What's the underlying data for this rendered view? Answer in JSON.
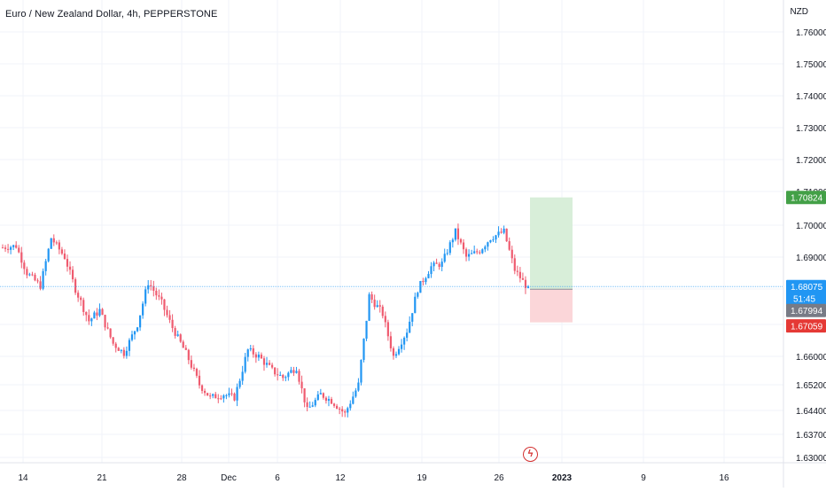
{
  "header": {
    "title": "Euro / New Zealand Dollar, 4h, PEPPERSTONE",
    "currency": "NZD"
  },
  "price_scale": {
    "ticks": [
      "1.76000",
      "1.75000",
      "1.74000",
      "1.73000",
      "1.72000",
      "1.71000",
      "1.70000",
      "1.69000",
      "1.68000",
      "1.67000",
      "1.66000",
      "1.65200",
      "1.64400",
      "1.63700",
      "1.63000"
    ],
    "labels": {
      "take_profit": "1.70824",
      "last_price": "1.68075",
      "countdown": "51:45",
      "entry": "1.67994",
      "stop_loss": "1.67059"
    }
  },
  "time_scale": {
    "ticks": [
      "14",
      "21",
      "28",
      "Dec",
      "6",
      "12",
      "19",
      "26",
      "2023",
      "9",
      "16"
    ]
  },
  "colors": {
    "up": "#2196f3",
    "down": "#ef5b6f",
    "last_price_line": "#2196f3",
    "take_profit_zone": "#d8eed9",
    "stop_loss_zone": "#fbd6d9",
    "tp_label": "#43a047",
    "sl_label": "#e53935",
    "entry_label": "#787b86"
  },
  "chart_data": {
    "type": "candlestick",
    "symbol": "EURNZD",
    "timeframe": "4h",
    "y_range": [
      1.63,
      1.765
    ],
    "anchors": [
      {
        "x": "14",
        "y": 1.693
      },
      {
        "x": "17",
        "y": 1.6935
      },
      {
        "x": "18",
        "y": 1.685
      },
      {
        "x": "18",
        "y": 1.681
      },
      {
        "x": "19",
        "y": 1.696
      },
      {
        "x": "20",
        "y": 1.69
      },
      {
        "x": "22",
        "y": 1.68
      },
      {
        "x": "23",
        "y": 1.671
      },
      {
        "x": "25",
        "y": 1.674
      },
      {
        "x": "26",
        "y": 1.664
      },
      {
        "x": "27",
        "y": 1.661
      },
      {
        "x": "28",
        "y": 1.67
      },
      {
        "x": "29",
        "y": 1.682
      },
      {
        "x": "29",
        "y": 1.676
      },
      {
        "x": "30",
        "y": 1.669
      },
      {
        "x": "Dec",
        "y": 1.661
      },
      {
        "x": "2",
        "y": 1.652
      },
      {
        "x": "3",
        "y": 1.648
      },
      {
        "x": "4",
        "y": 1.649
      },
      {
        "x": "5",
        "y": 1.648
      },
      {
        "x": "6",
        "y": 1.662
      },
      {
        "x": "7",
        "y": 1.66
      },
      {
        "x": "8",
        "y": 1.656
      },
      {
        "x": "9",
        "y": 1.654
      },
      {
        "x": "10",
        "y": 1.657
      },
      {
        "x": "11",
        "y": 1.644
      },
      {
        "x": "12",
        "y": 1.649
      },
      {
        "x": "13",
        "y": 1.647
      },
      {
        "x": "14",
        "y": 1.643
      },
      {
        "x": "15",
        "y": 1.652
      },
      {
        "x": "16",
        "y": 1.678
      },
      {
        "x": "17",
        "y": 1.673
      },
      {
        "x": "18",
        "y": 1.66
      },
      {
        "x": "19",
        "y": 1.668
      },
      {
        "x": "20",
        "y": 1.68
      },
      {
        "x": "21",
        "y": 1.687
      },
      {
        "x": "22",
        "y": 1.688
      },
      {
        "x": "23",
        "y": 1.698
      },
      {
        "x": "24",
        "y": 1.69
      },
      {
        "x": "25",
        "y": 1.692
      },
      {
        "x": "26",
        "y": 1.696
      },
      {
        "x": "27",
        "y": 1.698
      },
      {
        "x": "27",
        "y": 1.686
      },
      {
        "x": "28",
        "y": 1.68
      }
    ],
    "position": {
      "type": "long",
      "take_profit": 1.70824,
      "entry": 1.67994,
      "stop_loss": 1.67059
    },
    "last_price": 1.68075
  }
}
